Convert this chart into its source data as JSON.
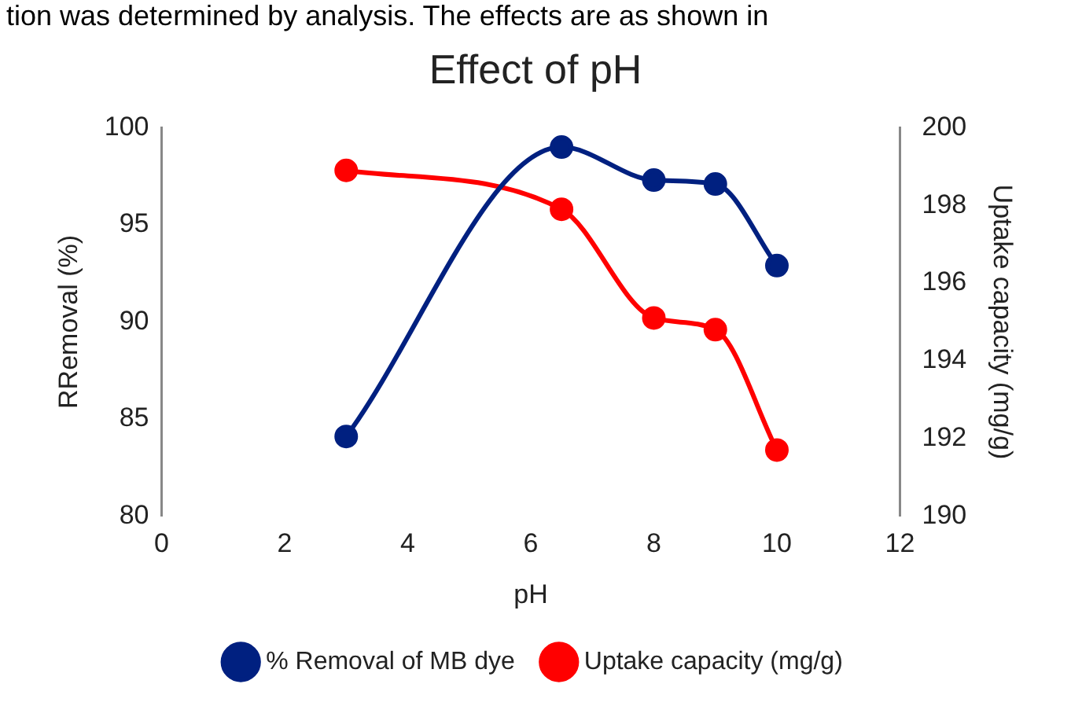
{
  "chart_data": {
    "type": "line",
    "title": "Effect of pH",
    "xlabel": "pH",
    "ylabel": "RRemoval (%)",
    "y2label": "Uptake capacity (mg/g)",
    "annotations": [
      "tion was determined by analysis. The effects are as shown in"
    ],
    "x": [
      3,
      6.5,
      8,
      9,
      10
    ],
    "series": [
      {
        "name": "% Removal of MB dye",
        "color": "#002080",
        "values": [
          84.1,
          99.0,
          97.3,
          97.1,
          92.9
        ]
      },
      {
        "name": "Uptake capacity (mg/g)",
        "color": "#ff0000",
        "axis": "y2",
        "values": [
          198.9,
          197.9,
          195.1,
          194.8,
          191.7
        ]
      }
    ],
    "xlim": [
      0,
      12
    ],
    "xticks": [
      0,
      2,
      4,
      6,
      8,
      10,
      12
    ],
    "ylim": [
      80,
      100
    ],
    "yticks": [
      80,
      85,
      90,
      95,
      100
    ],
    "y2lim": [
      190,
      200
    ],
    "y2ticks": [
      190,
      192,
      194,
      196,
      198,
      200
    ],
    "legend": "bottom",
    "marker": "circle",
    "line_style": "solid",
    "grid": false
  }
}
